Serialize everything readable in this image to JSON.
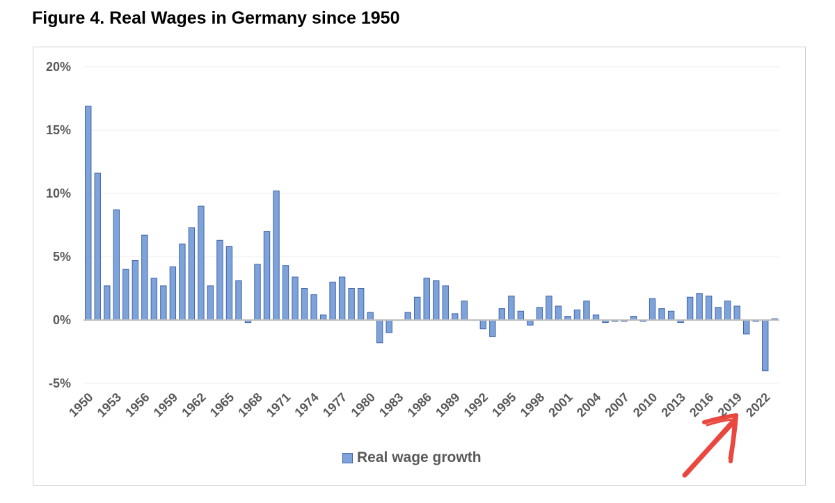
{
  "figure": {
    "title": "Figure 4. Real Wages in Germany since 1950"
  },
  "colors": {
    "bar_fill": "#7ea2da",
    "bar_stroke": "#3f64a8",
    "axis": "#bfbfbf",
    "grid": "#efefef",
    "text": "#595959",
    "annotation": "#e8342a"
  },
  "annotation": {
    "icon": "red-arrow-icon",
    "points_to": "2022"
  },
  "chart_data": {
    "type": "bar",
    "title": "",
    "xlabel": "",
    "ylabel": "",
    "ylim": [
      -5,
      20
    ],
    "yticks": [
      20,
      15,
      10,
      5,
      0,
      -5
    ],
    "ytick_labels": [
      "20%",
      "15%",
      "10%",
      "5%",
      "0%",
      "-5%"
    ],
    "y_unit": "%",
    "grid": true,
    "legend_position": "bottom",
    "xtick_labels": [
      "1950",
      "1953",
      "1956",
      "1959",
      "1962",
      "1965",
      "1968",
      "1971",
      "1974",
      "1977",
      "1980",
      "1983",
      "1986",
      "1989",
      "1992",
      "1995",
      "1998",
      "2001",
      "2004",
      "2007",
      "2010",
      "2013",
      "2016",
      "2019",
      "2022"
    ],
    "categories": [
      1950,
      1951,
      1952,
      1953,
      1954,
      1955,
      1956,
      1957,
      1958,
      1959,
      1960,
      1961,
      1962,
      1963,
      1964,
      1965,
      1966,
      1967,
      1968,
      1969,
      1970,
      1971,
      1972,
      1973,
      1974,
      1975,
      1976,
      1977,
      1978,
      1979,
      1980,
      1981,
      1982,
      1983,
      1984,
      1985,
      1986,
      1987,
      1988,
      1989,
      1990,
      1991,
      1992,
      1993,
      1994,
      1995,
      1996,
      1997,
      1998,
      1999,
      2000,
      2001,
      2002,
      2003,
      2004,
      2005,
      2006,
      2007,
      2008,
      2009,
      2010,
      2011,
      2012,
      2013,
      2014,
      2015,
      2016,
      2017,
      2018,
      2019,
      2020,
      2021,
      2022,
      2023
    ],
    "series": [
      {
        "name": "Real wage growth",
        "values": [
          16.9,
          11.6,
          2.7,
          8.7,
          4.0,
          4.7,
          6.7,
          3.3,
          2.7,
          4.2,
          6.0,
          7.3,
          9.0,
          2.7,
          6.3,
          5.8,
          3.1,
          -0.2,
          4.4,
          7.0,
          10.2,
          4.3,
          3.4,
          2.5,
          2.0,
          0.4,
          3.0,
          3.4,
          2.5,
          2.5,
          0.6,
          -1.8,
          -1.0,
          0.0,
          0.6,
          1.8,
          3.3,
          3.1,
          2.7,
          0.5,
          1.5,
          0.0,
          -0.7,
          -1.3,
          0.9,
          1.9,
          0.7,
          -0.4,
          1.0,
          1.9,
          1.1,
          0.3,
          0.8,
          1.5,
          0.4,
          -0.2,
          -0.1,
          -0.1,
          0.3,
          -0.1,
          1.7,
          0.9,
          0.7,
          -0.2,
          1.8,
          2.1,
          1.9,
          1.0,
          1.5,
          1.1,
          -1.1,
          -0.1,
          -4.0,
          0.1
        ]
      }
    ]
  }
}
